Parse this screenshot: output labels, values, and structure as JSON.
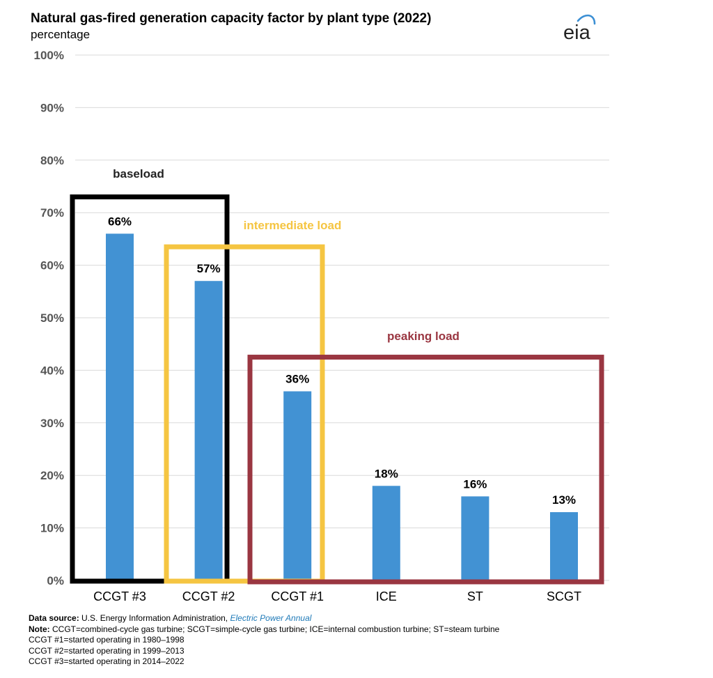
{
  "title": "Natural gas-fired generation capacity factor by plant type (2022)",
  "subtitle": "percentage",
  "logo_text": "eia",
  "colors": {
    "bar": "#4292d3",
    "grid": "#d9d9d9",
    "baseload": "#000000",
    "intermediate": "#f5c542",
    "peaking": "#9a3641",
    "intermediate_label": "#f5c542",
    "peaking_label": "#9a3641",
    "logo_arc": "#3b8fd4"
  },
  "chart_data": {
    "type": "bar",
    "title": "Natural gas-fired generation capacity factor by plant type (2022)",
    "ylabel": "percentage",
    "ylim": [
      0,
      100
    ],
    "yticks": [
      "0%",
      "10%",
      "20%",
      "30%",
      "40%",
      "50%",
      "60%",
      "70%",
      "80%",
      "90%",
      "100%"
    ],
    "categories": [
      "CCGT #3",
      "CCGT #2",
      "CCGT #1",
      "ICE",
      "ST",
      "SCGT"
    ],
    "values": [
      66,
      57,
      36,
      18,
      16,
      13
    ],
    "value_labels": [
      "66%",
      "57%",
      "36%",
      "18%",
      "16%",
      "13%"
    ],
    "grid": true,
    "annotations": [
      {
        "label": "baseload",
        "categories": [
          "CCGT #3",
          "CCGT #2"
        ],
        "top": 73
      },
      {
        "label": "intermediate load",
        "categories": [
          "CCGT #2",
          "CCGT #1"
        ],
        "top": 63.5
      },
      {
        "label": "peaking load",
        "categories": [
          "CCGT #1",
          "ICE",
          "ST",
          "SCGT"
        ],
        "top": 42.5
      }
    ]
  },
  "footer": {
    "source_label": "Data source:",
    "source_text": " U.S. Energy Information Administration, ",
    "source_pub": "Electric Power Annual",
    "note_label": "Note:",
    "note_text": " CCGT=combined-cycle gas turbine; SCGT=simple-cycle gas turbine; ICE=internal combustion turbine; ST=steam turbine",
    "line3": "CCGT #1=started operating in 1980–1998",
    "line4": "CCGT #2=started operating in 1999–2013",
    "line5": "CCGT #3=started operating in 2014–2022"
  }
}
